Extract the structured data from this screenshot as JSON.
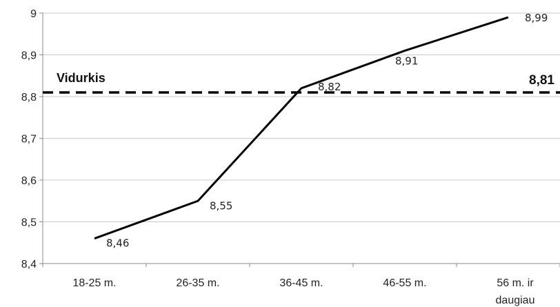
{
  "chart_data": {
    "type": "line",
    "categories": [
      "18-25 m.",
      "26-35 m.",
      "36-45 m.",
      "46-55 m.",
      "56 m. ir daugiau"
    ],
    "series": [
      {
        "values": [
          8.46,
          8.55,
          8.82,
          8.91,
          8.99
        ]
      }
    ],
    "data_labels": [
      "8,46",
      "8,55",
      "8,82",
      "8,91",
      "8,99"
    ],
    "reference_line": {
      "label": "Vidurkis",
      "value": 8.81,
      "value_label": "8,81",
      "style": "dashed"
    },
    "ylim": [
      8.4,
      9.0
    ],
    "yticks": [
      8.4,
      8.5,
      8.6,
      8.7,
      8.8,
      8.9,
      9.0
    ],
    "ytick_labels": [
      "8,4",
      "8,5",
      "8,6",
      "8,7",
      "8,8",
      "8,9",
      "9"
    ],
    "grid": true,
    "title": "",
    "xlabel": "",
    "ylabel": "",
    "colors": {
      "line": "#000000",
      "grid": "#c8c8c8",
      "axis": "#888888"
    }
  }
}
